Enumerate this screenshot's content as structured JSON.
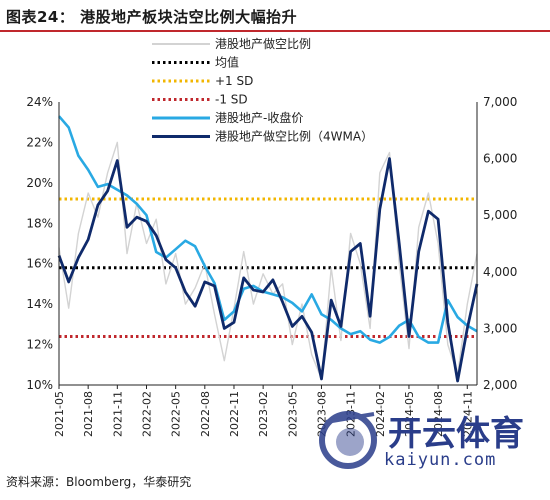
{
  "title": "图表24： 港股地产板块沽空比例大幅抬升",
  "source": "资料来源：Bloomberg，华泰研究",
  "watermark": {
    "name": "开云体育",
    "url": "kaiyun.com"
  },
  "colors": {
    "title_rule": "#c0282d",
    "short_ratio": "#d3d3d3",
    "mean": "#000000",
    "plus_sd": "#f2b600",
    "minus_sd": "#c0282d",
    "index": "#29a9e3",
    "ma4": "#0f2a6b"
  },
  "chart_data": {
    "type": "line",
    "legend": [
      "港股地产做空比例",
      "均值",
      "+1 SD",
      "-1 SD",
      "港股地产-收盘价",
      "港股地产做空比例（4WMA）"
    ],
    "ylim_left": [
      0.1,
      0.24
    ],
    "yticks_left": [
      "10%",
      "12%",
      "14%",
      "16%",
      "18%",
      "20%",
      "22%",
      "24%"
    ],
    "ylim_right": [
      2000,
      7000
    ],
    "yticks_right": [
      "2,000",
      "3,000",
      "4,000",
      "5,000",
      "6,000",
      "7,000"
    ],
    "xticks": [
      "2021-05",
      "2021-08",
      "2021-11",
      "2022-02",
      "2022-05",
      "2022-08",
      "2022-11",
      "2023-02",
      "2023-05",
      "2023-08",
      "2023-11",
      "2024-02",
      "2024-05",
      "2024-08",
      "2024-11"
    ],
    "x_range": [
      "2021-05",
      "2024-12"
    ],
    "series": [
      {
        "name": "港股地产-收盘价",
        "axis": "right",
        "x": [
          "2021-05",
          "2021-06",
          "2021-07",
          "2021-08",
          "2021-09",
          "2021-10",
          "2021-11",
          "2021-12",
          "2022-01",
          "2022-02",
          "2022-03",
          "2022-04",
          "2022-05",
          "2022-06",
          "2022-07",
          "2022-08",
          "2022-09",
          "2022-10",
          "2022-11",
          "2022-12",
          "2023-01",
          "2023-02",
          "2023-03",
          "2023-04",
          "2023-05",
          "2023-06",
          "2023-07",
          "2023-08",
          "2023-09",
          "2023-10",
          "2023-11",
          "2023-12",
          "2024-01",
          "2024-02",
          "2024-03",
          "2024-04",
          "2024-05",
          "2024-06",
          "2024-07",
          "2024-08",
          "2024-09",
          "2024-10",
          "2024-11",
          "2024-12"
        ],
        "values": [
          6750,
          6550,
          6050,
          5800,
          5500,
          5550,
          5450,
          5350,
          5200,
          5000,
          4350,
          4250,
          4400,
          4550,
          4450,
          4100,
          3800,
          3150,
          3300,
          3700,
          3750,
          3650,
          3600,
          3550,
          3450,
          3300,
          3600,
          3250,
          3150,
          3000,
          2900,
          2950,
          2800,
          2750,
          2850,
          3050,
          3150,
          2850,
          2750,
          2750,
          3500,
          3200,
          3050,
          2950
        ]
      },
      {
        "name": "港股地产做空比例（4WMA）",
        "axis": "left",
        "x": [
          "2021-05",
          "2021-06",
          "2021-07",
          "2021-08",
          "2021-09",
          "2021-10",
          "2021-11",
          "2021-12",
          "2022-01",
          "2022-02",
          "2022-03",
          "2022-04",
          "2022-05",
          "2022-06",
          "2022-07",
          "2022-08",
          "2022-09",
          "2022-10",
          "2022-11",
          "2022-12",
          "2023-01",
          "2023-02",
          "2023-03",
          "2023-04",
          "2023-05",
          "2023-06",
          "2023-07",
          "2023-08",
          "2023-09",
          "2023-10",
          "2023-11",
          "2023-12",
          "2024-01",
          "2024-02",
          "2024-03",
          "2024-04",
          "2024-05",
          "2024-06",
          "2024-07",
          "2024-08",
          "2024-09",
          "2024-10",
          "2024-11",
          "2024-12"
        ],
        "values": [
          0.164,
          0.151,
          0.163,
          0.172,
          0.189,
          0.196,
          0.211,
          0.178,
          0.183,
          0.181,
          0.174,
          0.162,
          0.158,
          0.146,
          0.139,
          0.151,
          0.149,
          0.128,
          0.131,
          0.153,
          0.147,
          0.146,
          0.152,
          0.141,
          0.129,
          0.134,
          0.126,
          0.103,
          0.142,
          0.129,
          0.166,
          0.17,
          0.134,
          0.187,
          0.212,
          0.17,
          0.124,
          0.166,
          0.186,
          0.182,
          0.131,
          0.102,
          0.128,
          0.15
        ]
      },
      {
        "name": "港股地产做空比例",
        "axis": "left",
        "x": [
          "2021-05",
          "2021-06",
          "2021-07",
          "2021-08",
          "2021-09",
          "2021-10",
          "2021-11",
          "2021-12",
          "2022-01",
          "2022-02",
          "2022-03",
          "2022-04",
          "2022-05",
          "2022-06",
          "2022-07",
          "2022-08",
          "2022-09",
          "2022-10",
          "2022-11",
          "2022-12",
          "2023-01",
          "2023-02",
          "2023-03",
          "2023-04",
          "2023-05",
          "2023-06",
          "2023-07",
          "2023-08",
          "2023-09",
          "2023-10",
          "2023-11",
          "2023-12",
          "2024-01",
          "2024-02",
          "2024-03",
          "2024-04",
          "2024-05",
          "2024-06",
          "2024-07",
          "2024-08",
          "2024-09",
          "2024-10",
          "2024-11",
          "2024-12"
        ],
        "values": [
          0.168,
          0.138,
          0.175,
          0.195,
          0.183,
          0.205,
          0.22,
          0.165,
          0.19,
          0.17,
          0.182,
          0.15,
          0.165,
          0.14,
          0.148,
          0.16,
          0.135,
          0.112,
          0.138,
          0.166,
          0.14,
          0.155,
          0.145,
          0.15,
          0.12,
          0.14,
          0.115,
          0.103,
          0.158,
          0.122,
          0.175,
          0.16,
          0.128,
          0.205,
          0.215,
          0.16,
          0.118,
          0.178,
          0.195,
          0.17,
          0.12,
          0.105,
          0.14,
          0.165
        ]
      },
      {
        "name": "均值",
        "axis": "left",
        "value": 0.158
      },
      {
        "name": "+1 SD",
        "axis": "left",
        "value": 0.192
      },
      {
        "name": "-1 SD",
        "axis": "left",
        "value": 0.124
      }
    ]
  }
}
